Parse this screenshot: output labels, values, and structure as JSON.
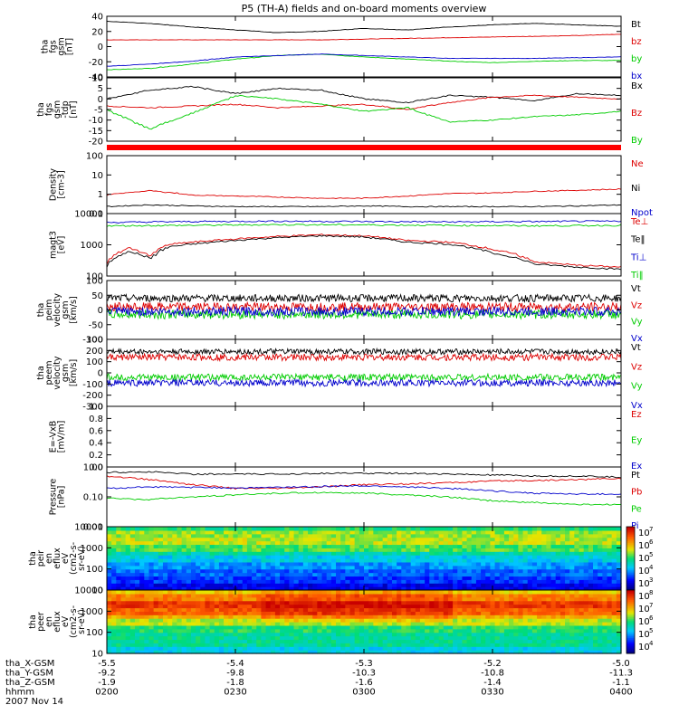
{
  "title": "P5 (TH-A) fields and on-board moments overview",
  "colors": {
    "black": "#000000",
    "red": "#dd0000",
    "green": "#00cc00",
    "blue": "#0000cc",
    "banner": "#ff0000"
  },
  "chart_data": [
    {
      "id": "fgs_gsm",
      "type": "line",
      "ylabel": [
        "tha",
        "fgs",
        "gsm",
        "[nT]"
      ],
      "yticks": [
        "40",
        "20",
        "0",
        "-20",
        "-40"
      ],
      "ylim": [
        -40,
        45
      ],
      "xlim": [
        "0200",
        "0400"
      ],
      "series": [
        {
          "name": "Bt",
          "color": "black",
          "x": [
            "0200",
            "0210",
            "0220",
            "0230",
            "0240",
            "0250",
            "0300",
            "0310",
            "0320",
            "0330",
            "0340",
            "0350",
            "0400"
          ],
          "values": [
            38,
            35,
            30,
            26,
            22,
            24,
            28,
            26,
            30,
            33,
            35,
            33,
            31
          ]
        },
        {
          "name": "bz",
          "color": "red",
          "x": [
            "0200",
            "0210",
            "0220",
            "0230",
            "0240",
            "0250",
            "0300",
            "0310",
            "0320",
            "0330",
            "0340",
            "0350",
            "0400"
          ],
          "values": [
            12,
            12,
            12,
            12,
            12,
            12,
            13,
            14,
            15,
            16,
            17,
            18,
            20
          ]
        },
        {
          "name": "by",
          "color": "green",
          "x": [
            "0200",
            "0210",
            "0220",
            "0230",
            "0240",
            "0250",
            "0300",
            "0310",
            "0320",
            "0330",
            "0340",
            "0350",
            "0400"
          ],
          "values": [
            -30,
            -28,
            -22,
            -15,
            -10,
            -8,
            -12,
            -15,
            -18,
            -20,
            -18,
            -17,
            -17
          ]
        },
        {
          "name": "bx",
          "color": "blue",
          "x": [
            "0200",
            "0210",
            "0220",
            "0230",
            "0240",
            "0250",
            "0300",
            "0310",
            "0320",
            "0330",
            "0340",
            "0350",
            "0400"
          ],
          "values": [
            -25,
            -22,
            -18,
            -12,
            -10,
            -8,
            -10,
            -12,
            -14,
            -14,
            -14,
            -13,
            -12
          ]
        }
      ]
    },
    {
      "id": "fgs_gsm_dtrend",
      "type": "line",
      "ylabel": [
        "tha",
        "fgs",
        "gsm",
        "-tdp",
        "[nT]"
      ],
      "yticks": [
        "10",
        "5",
        "0",
        "-5",
        "-10",
        "-15",
        "-20"
      ],
      "ylim": [
        -24,
        12
      ],
      "xlim": [
        "0200",
        "0400"
      ],
      "series": [
        {
          "name": "Bx",
          "color": "black",
          "x": [
            "0200",
            "0210",
            "0220",
            "0230",
            "0240",
            "0250",
            "0300",
            "0310",
            "0320",
            "0330",
            "0340",
            "0350",
            "0400"
          ],
          "values": [
            0,
            5,
            7,
            3,
            6,
            5,
            0,
            -2,
            2,
            1,
            -1,
            3,
            2
          ]
        },
        {
          "name": "Bz",
          "color": "red",
          "x": [
            "0200",
            "0210",
            "0220",
            "0230",
            "0240",
            "0250",
            "0300",
            "0310",
            "0320",
            "0330",
            "0340",
            "0350",
            "0400"
          ],
          "values": [
            -4,
            -5,
            -4,
            -3,
            -5,
            -4,
            -3,
            -6,
            -2,
            1,
            2,
            1,
            0
          ]
        },
        {
          "name": "By",
          "color": "green",
          "x": [
            "0200",
            "0210",
            "0220",
            "0230",
            "0240",
            "0250",
            "0300",
            "0310",
            "0320",
            "0330",
            "0340",
            "0350",
            "0400"
          ],
          "values": [
            -6,
            -17,
            -8,
            2,
            0,
            -3,
            -7,
            -5,
            -13,
            -12,
            -10,
            -9,
            -7
          ]
        }
      ]
    },
    {
      "id": "density",
      "type": "line",
      "log": true,
      "ylabel": [
        "Density",
        "[cm-3]"
      ],
      "yticks": [
        "100",
        "10",
        "1",
        "0.1"
      ],
      "ylim": [
        0.08,
        160
      ],
      "xlim": [
        "0200",
        "0400"
      ],
      "series": [
        {
          "name": "Ne",
          "color": "red",
          "x": [
            "0200",
            "0210",
            "0220",
            "0230",
            "0240",
            "0250",
            "0300",
            "0310",
            "0320",
            "0330",
            "0340",
            "0350",
            "0400"
          ],
          "values": [
            0.9,
            1.6,
            0.9,
            0.8,
            0.7,
            0.6,
            0.6,
            0.8,
            1.1,
            1.2,
            1.5,
            1.7,
            2.0
          ]
        },
        {
          "name": "Ni",
          "color": "black",
          "x": [
            "0200",
            "0210",
            "0220",
            "0230",
            "0240",
            "0250",
            "0300",
            "0310",
            "0320",
            "0330",
            "0340",
            "0350",
            "0400"
          ],
          "values": [
            0.2,
            0.25,
            0.22,
            0.2,
            0.2,
            0.2,
            0.22,
            0.2,
            0.2,
            0.2,
            0.2,
            0.22,
            0.25
          ]
        },
        {
          "name": "Npot",
          "color": "blue",
          "x": [],
          "values": []
        }
      ]
    },
    {
      "id": "temperature",
      "type": "line",
      "log": true,
      "ylabel": [
        "magt3",
        "[eV]"
      ],
      "yticks": [
        "10000",
        "1000",
        "100"
      ],
      "ylim": [
        100,
        13000
      ],
      "xlim": [
        "0200",
        "0400"
      ],
      "series": [
        {
          "name": "Te⊥",
          "color": "red",
          "x": [
            "0200",
            "0205",
            "0210",
            "0215",
            "0220",
            "0230",
            "0240",
            "0250",
            "0300",
            "0310",
            "0320",
            "0330",
            "0340",
            "0350",
            "0400"
          ],
          "values": [
            250,
            900,
            500,
            1200,
            1400,
            1800,
            2200,
            2500,
            2300,
            1600,
            1400,
            800,
            300,
            230,
            200
          ]
        },
        {
          "name": "Te‖",
          "color": "black",
          "x": [
            "0200",
            "0205",
            "0210",
            "0215",
            "0220",
            "0230",
            "0240",
            "0250",
            "0300",
            "0310",
            "0320",
            "0330",
            "0340",
            "0350",
            "0400"
          ],
          "values": [
            200,
            700,
            400,
            1000,
            1200,
            1600,
            2000,
            2300,
            2100,
            1400,
            1200,
            600,
            250,
            200,
            170
          ]
        },
        {
          "name": "Ti⊥",
          "color": "blue",
          "x": [
            "0200",
            "0220",
            "0240",
            "0300",
            "0320",
            "0340",
            "0400"
          ],
          "values": [
            6500,
            7000,
            7200,
            7000,
            6800,
            7000,
            7200
          ]
        },
        {
          "name": "Ti‖",
          "color": "green",
          "x": [
            "0200",
            "0220",
            "0240",
            "0300",
            "0320",
            "0340",
            "0400"
          ],
          "values": [
            5000,
            5200,
            5500,
            5400,
            5200,
            5000,
            5200
          ]
        }
      ]
    },
    {
      "id": "velocity_peim",
      "type": "line",
      "ylabel": [
        "tha",
        "peim",
        "velocity",
        "gsm",
        "[km/s]"
      ],
      "yticks": [
        "100",
        "50",
        "0",
        "-50",
        "-100"
      ],
      "ylim": [
        -100,
        100
      ],
      "xlim": [
        "0200",
        "0400"
      ],
      "series": [
        {
          "name": "Vt",
          "color": "black",
          "x": [
            "0200",
            "0400"
          ],
          "values": [
            40,
            40
          ]
        },
        {
          "name": "Vz",
          "color": "red",
          "x": [
            "0200",
            "0400"
          ],
          "values": [
            10,
            10
          ]
        },
        {
          "name": "Vy",
          "color": "green",
          "x": [
            "0200",
            "0400"
          ],
          "values": [
            -15,
            -15
          ]
        },
        {
          "name": "Vx",
          "color": "blue",
          "x": [
            "0200",
            "0400"
          ],
          "values": [
            -5,
            -5
          ]
        }
      ]
    },
    {
      "id": "velocity_peem",
      "type": "line",
      "ylabel": [
        "tha",
        "peem",
        "velocity",
        "gsm",
        "[km/s]"
      ],
      "yticks": [
        "300",
        "200",
        "100",
        "0",
        "-100",
        "-200",
        "-300"
      ],
      "ylim": [
        -300,
        300
      ],
      "xlim": [
        "0200",
        "0400"
      ],
      "series": [
        {
          "name": "Vt",
          "color": "black",
          "x": [
            "0200",
            "0400"
          ],
          "values": [
            190,
            190
          ]
        },
        {
          "name": "Vz",
          "color": "red",
          "x": [
            "0200",
            "0400"
          ],
          "values": [
            140,
            140
          ]
        },
        {
          "name": "Vy",
          "color": "green",
          "x": [
            "0200",
            "0400"
          ],
          "values": [
            -40,
            -40
          ]
        },
        {
          "name": "Vx",
          "color": "blue",
          "x": [
            "0200",
            "0400"
          ],
          "values": [
            -90,
            -90
          ]
        }
      ]
    },
    {
      "id": "efield",
      "type": "line",
      "ylabel": [
        "E=-VxB",
        "[mV/m]"
      ],
      "yticks": [
        "1.0",
        "0.8",
        "0.6",
        "0.4",
        "0.2",
        "0.0"
      ],
      "ylim": [
        0,
        1
      ],
      "xlim": [
        "0200",
        "0400"
      ],
      "series": [
        {
          "name": "Ez",
          "color": "red",
          "x": [],
          "values": []
        },
        {
          "name": "Ey",
          "color": "green",
          "x": [],
          "values": []
        },
        {
          "name": "Ex",
          "color": "blue",
          "x": [],
          "values": []
        }
      ]
    },
    {
      "id": "pressure",
      "type": "line",
      "log": true,
      "ylabel": [
        "Pressure",
        "[nPa]"
      ],
      "yticks": [
        "1.00",
        "0.10",
        "0.01"
      ],
      "ylim": [
        0.01,
        1.25
      ],
      "xlim": [
        "0200",
        "0400"
      ],
      "series": [
        {
          "name": "Pt",
          "color": "black",
          "x": [
            "0200",
            "0210",
            "0220",
            "0230",
            "0240",
            "0250",
            "0300",
            "0310",
            "0320",
            "0330",
            "0340",
            "0350",
            "0400"
          ],
          "values": [
            0.8,
            0.85,
            0.7,
            0.7,
            0.7,
            0.75,
            0.75,
            0.75,
            0.7,
            0.65,
            0.6,
            0.6,
            0.55
          ]
        },
        {
          "name": "Pb",
          "color": "red",
          "x": [
            "0200",
            "0210",
            "0220",
            "0230",
            "0240",
            "0250",
            "0300",
            "0310",
            "0320",
            "0330",
            "0340",
            "0350",
            "0400"
          ],
          "values": [
            0.6,
            0.45,
            0.3,
            0.22,
            0.22,
            0.25,
            0.3,
            0.32,
            0.35,
            0.4,
            0.42,
            0.45,
            0.5
          ]
        },
        {
          "name": "Pe",
          "color": "green",
          "x": [
            "0200",
            "0210",
            "0220",
            "0230",
            "0240",
            "0250",
            "0300",
            "0310",
            "0320",
            "0330",
            "0340",
            "0350",
            "0400"
          ],
          "values": [
            0.1,
            0.09,
            0.11,
            0.13,
            0.15,
            0.16,
            0.15,
            0.13,
            0.11,
            0.08,
            0.07,
            0.06,
            0.06
          ]
        },
        {
          "name": "Pi",
          "color": "blue",
          "x": [
            "0200",
            "0210",
            "0220",
            "0230",
            "0240",
            "0250",
            "0300",
            "0310",
            "0320",
            "0330",
            "0340",
            "0350",
            "0400"
          ],
          "values": [
            0.22,
            0.25,
            0.24,
            0.23,
            0.24,
            0.26,
            0.27,
            0.25,
            0.22,
            0.18,
            0.15,
            0.14,
            0.14
          ]
        }
      ]
    },
    {
      "id": "peir_spectrogram",
      "type": "heatmap",
      "log": true,
      "ylabel": [
        "tha",
        "peir",
        "en",
        "eflux",
        "eV",
        "(cm2-s-",
        "sr-eV)"
      ],
      "yticks": [
        "10000",
        "1000",
        "100",
        "10"
      ],
      "ylim": [
        8,
        16000
      ],
      "xlim": [
        "0200",
        "0400"
      ],
      "colorbar": {
        "min_exp": 3,
        "max_exp": 7,
        "labels": [
          "10",
          "10",
          "10",
          "10",
          "10"
        ],
        "exponents": [
          "7",
          "6",
          "5",
          "4",
          "3"
        ]
      },
      "energy_levels": [
        10,
        20,
        50,
        100,
        200,
        500,
        1000,
        2000,
        5000,
        10000
      ],
      "log_flux": [
        3.5,
        3.8,
        4.0,
        4.2,
        4.5,
        4.8,
        5.2,
        5.5,
        5.4,
        5.0
      ]
    },
    {
      "id": "peer_spectrogram",
      "type": "heatmap",
      "log": true,
      "ylabel": [
        "tha",
        "peer",
        "en",
        "eflux",
        "eV",
        "(cm2-s-",
        "sr-eV)"
      ],
      "yticks": [
        "10000",
        "1000",
        "100",
        "10"
      ],
      "ylim": [
        8,
        16000
      ],
      "xlim": [
        "0200",
        "0400"
      ],
      "colorbar": {
        "min_exp": 3.5,
        "max_exp": 8,
        "labels": [
          "10",
          "10",
          "10",
          "10",
          "10"
        ],
        "exponents": [
          "8",
          "7",
          "6",
          "5",
          "4"
        ]
      },
      "energy_levels": [
        10,
        20,
        50,
        100,
        200,
        500,
        1000,
        2000,
        5000,
        10000
      ],
      "log_flux": [
        5.2,
        5.6,
        5.6,
        5.8,
        6.3,
        6.8,
        7.3,
        7.6,
        7.1,
        6.6
      ]
    }
  ],
  "xaxis": {
    "rows": [
      {
        "label": "tha_X-GSM",
        "values": [
          "-5.5",
          "-5.4",
          "-5.3",
          "-5.2",
          "-5.0"
        ]
      },
      {
        "label": "tha_Y-GSM",
        "values": [
          "-9.2",
          "-9.8",
          "-10.3",
          "-10.8",
          "-11.3"
        ]
      },
      {
        "label": "tha_Z-GSM",
        "values": [
          "-1.9",
          "-1.8",
          "-1.6",
          "-1.4",
          "-1.1"
        ]
      },
      {
        "label": "hhmm",
        "values": [
          "0200",
          "0230",
          "0300",
          "0330",
          "0400"
        ]
      }
    ],
    "date": "2007 Nov 14"
  }
}
